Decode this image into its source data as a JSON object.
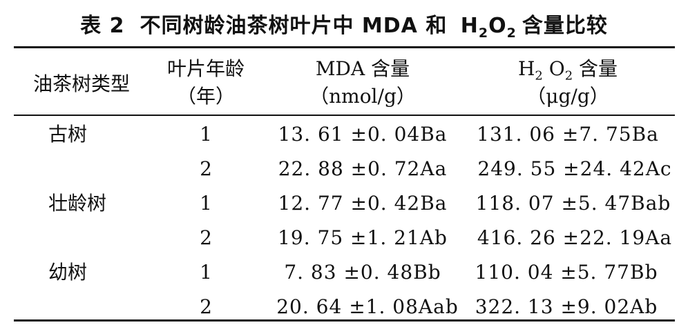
{
  "caption": {
    "number": "表 2",
    "text_before": "不同树龄油茶树叶片中 MDA 和",
    "h": "H",
    "sub1": "2",
    "o": "O",
    "sub2": "2",
    "text_after": "含量比较"
  },
  "headers": {
    "col1": "油茶树类型",
    "col2_line1": "叶片年龄",
    "col2_line2": "（年）",
    "col3_line1": "MDA 含量",
    "col3_line2": "（nmol/g）",
    "col4_h": "H",
    "col4_sub1": "2",
    "col4_o": "O",
    "col4_sub2": "2",
    "col4_rest": "含量",
    "col4_line2": "（μg/g）"
  },
  "rows": [
    {
      "type": "古树",
      "age": "1",
      "mda": "13. 61 ±0. 04Ba",
      "h2o2": "131. 06 ±7. 75Ba"
    },
    {
      "type": "",
      "age": "2",
      "mda": "22. 88 ±0. 72Aa",
      "h2o2": "249. 55 ±24. 42Ac"
    },
    {
      "type": "壮龄树",
      "age": "1",
      "mda": "12. 77 ±0. 42Ba",
      "h2o2": "118. 07 ±5. 47Bab"
    },
    {
      "type": "",
      "age": "2",
      "mda": "19. 75 ±1. 21Ab",
      "h2o2": "416. 26 ±22. 19Aa"
    },
    {
      "type": "幼树",
      "age": "1",
      "mda": "7. 83 ±0. 48Bb",
      "h2o2": "110. 04 ±5. 77Bb"
    },
    {
      "type": "",
      "age": "2",
      "mda": "20. 64 ±1. 08Aab",
      "h2o2": "322. 13 ±9. 02Ab"
    }
  ]
}
